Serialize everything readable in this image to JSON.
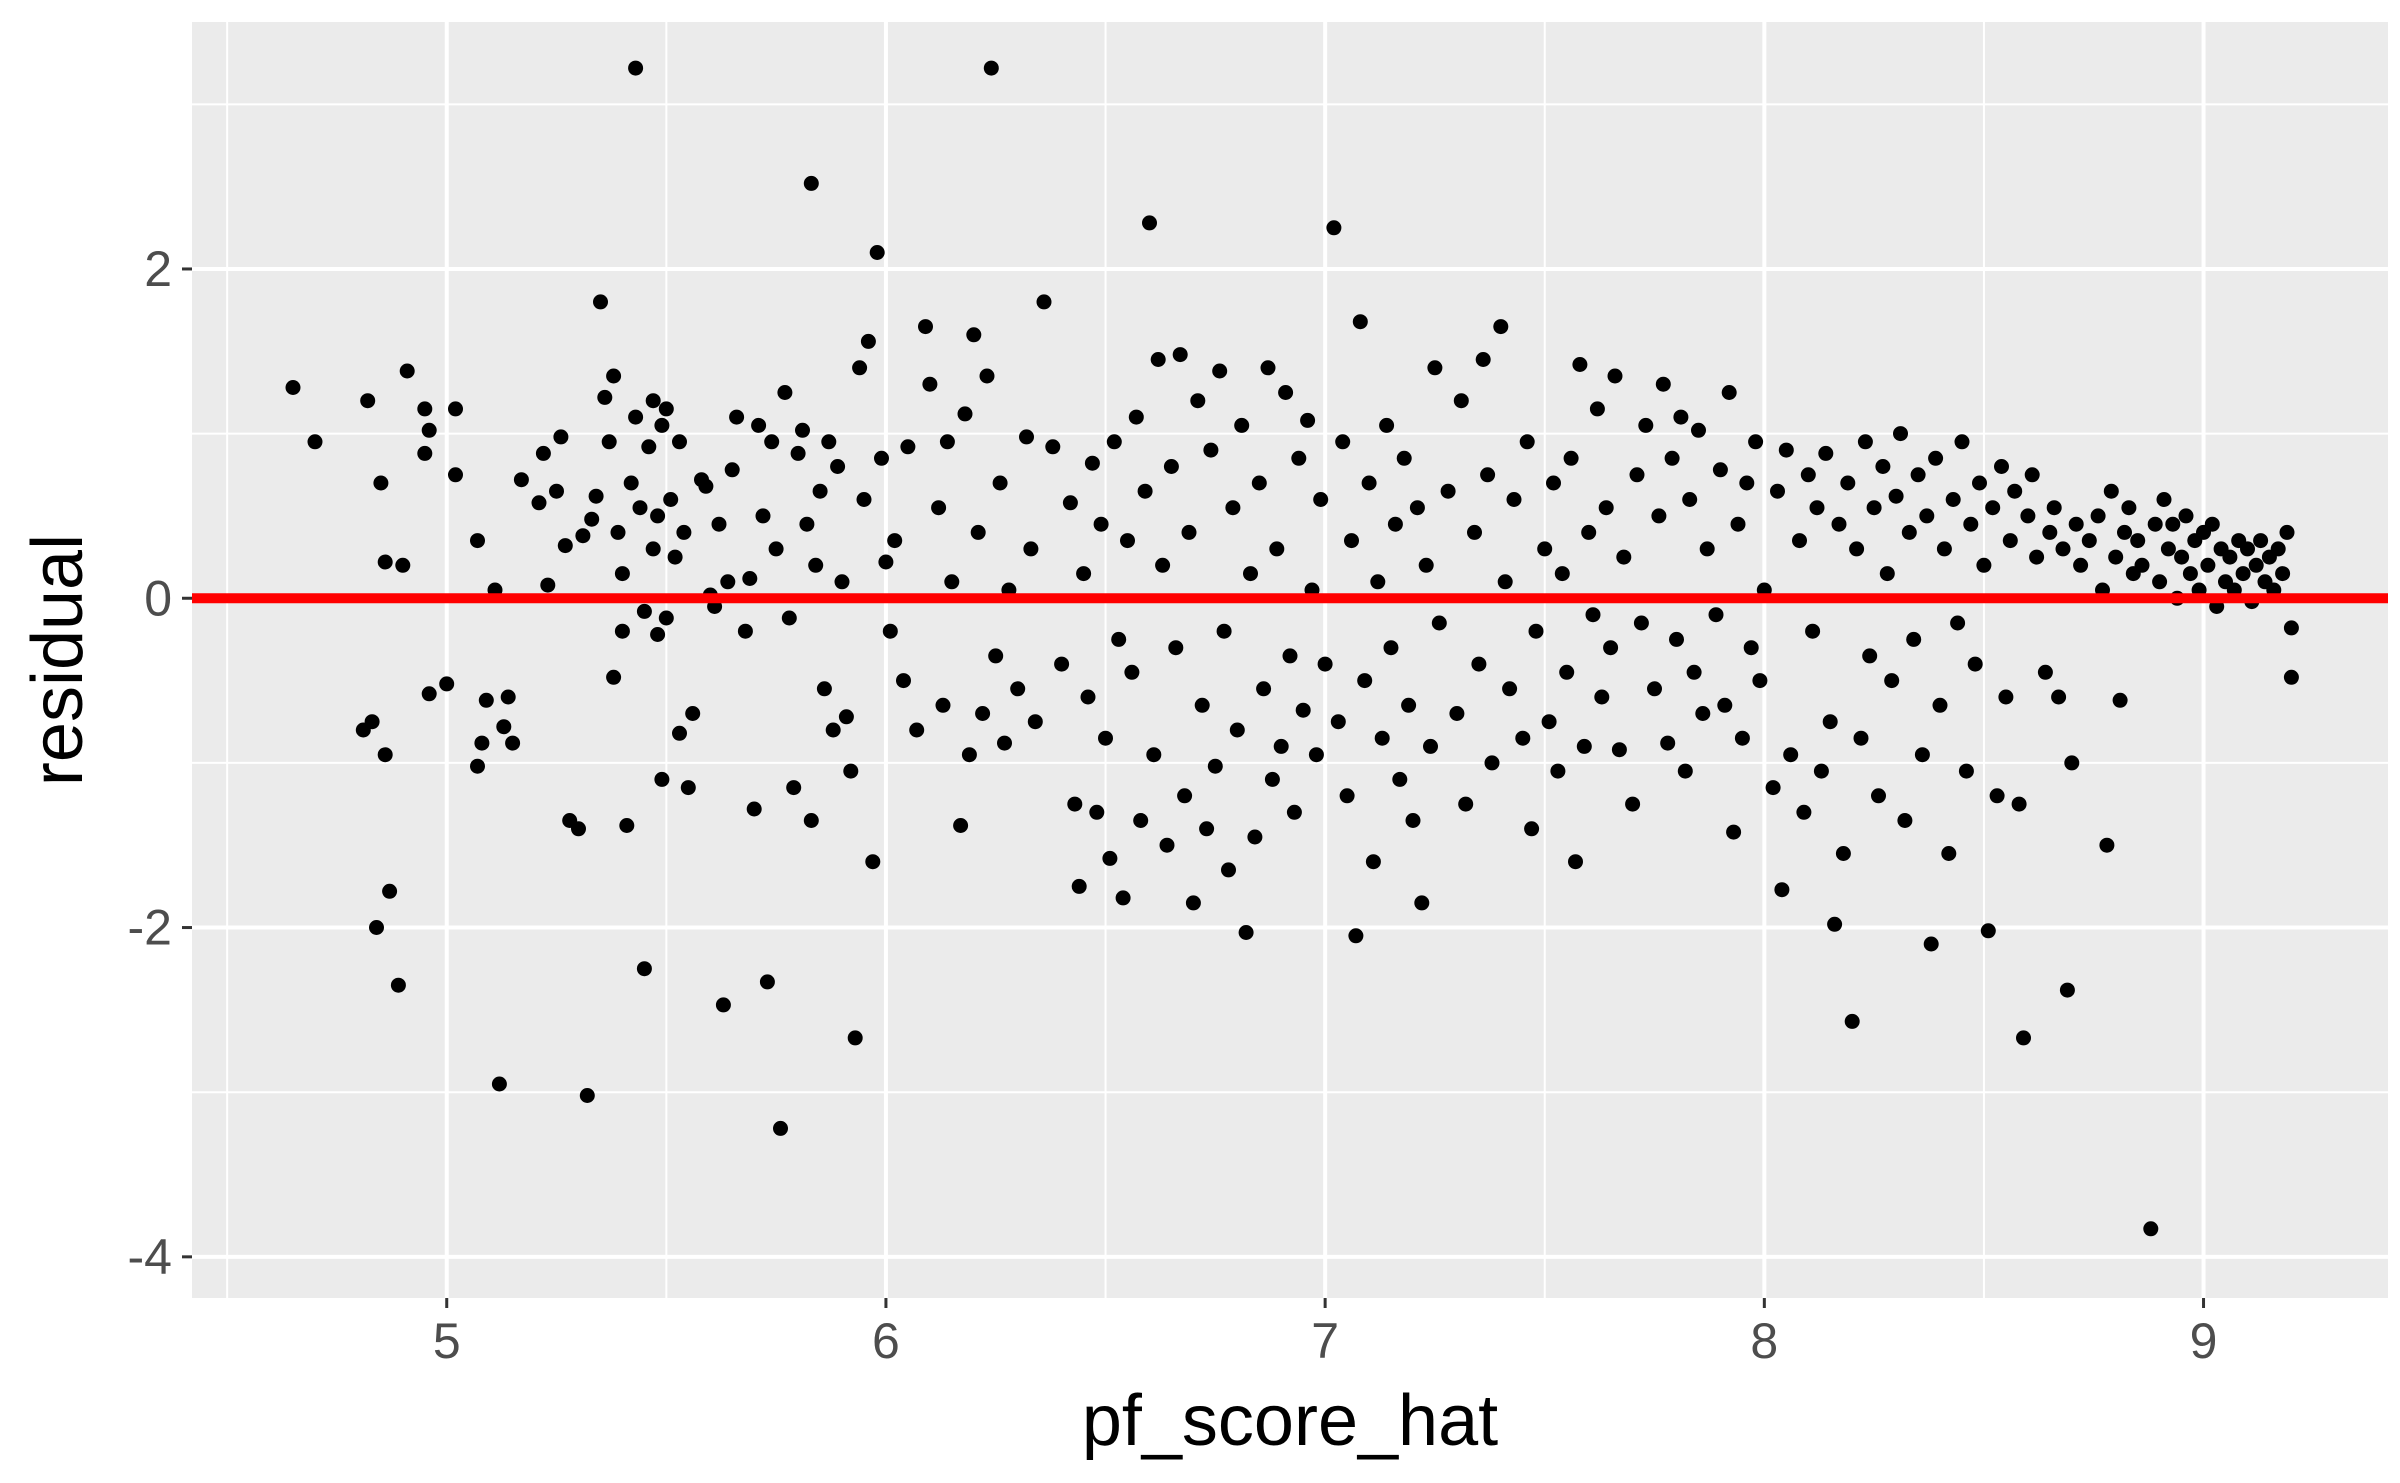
{
  "chart_data": {
    "type": "scatter",
    "xlabel": "pf_score_hat",
    "ylabel": "residual",
    "xlim": [
      4.42,
      9.42
    ],
    "ylim": [
      -4.25,
      3.5
    ],
    "x_ticks": [
      5,
      6,
      7,
      8,
      9
    ],
    "x_tick_labels": [
      "5",
      "6",
      "7",
      "8",
      "9"
    ],
    "y_ticks": [
      -4,
      -2,
      0,
      2
    ],
    "y_tick_labels": [
      "-4",
      "-2",
      "0",
      "2"
    ],
    "grid": true,
    "legend": "none",
    "reference_line": {
      "y": 0,
      "color": "#ff0000"
    },
    "colors": {
      "panel": "#ebebeb",
      "grid": "#ffffff",
      "point": "#000000",
      "reference": "#ff0000"
    },
    "points": [
      [
        4.65,
        1.28
      ],
      [
        4.7,
        0.95
      ],
      [
        4.82,
        1.2
      ],
      [
        4.81,
        -0.8
      ],
      [
        4.83,
        -0.75
      ],
      [
        4.85,
        0.7
      ],
      [
        4.86,
        0.22
      ],
      [
        4.86,
        -0.95
      ],
      [
        4.84,
        -2.0
      ],
      [
        4.87,
        -1.78
      ],
      [
        4.89,
        -2.35
      ],
      [
        4.9,
        0.2
      ],
      [
        4.91,
        1.38
      ],
      [
        4.95,
        1.15
      ],
      [
        4.95,
        0.88
      ],
      [
        4.96,
        1.02
      ],
      [
        4.96,
        -0.58
      ],
      [
        5.0,
        -0.52
      ],
      [
        5.02,
        1.15
      ],
      [
        5.02,
        0.75
      ],
      [
        5.07,
        0.35
      ],
      [
        5.07,
        -1.02
      ],
      [
        5.08,
        -0.88
      ],
      [
        5.09,
        -0.62
      ],
      [
        5.11,
        0.05
      ],
      [
        5.12,
        -2.95
      ],
      [
        5.13,
        -0.78
      ],
      [
        5.14,
        -0.6
      ],
      [
        5.15,
        -0.88
      ],
      [
        5.17,
        0.72
      ],
      [
        5.21,
        0.58
      ],
      [
        5.22,
        0.88
      ],
      [
        5.23,
        0.08
      ],
      [
        5.25,
        0.65
      ],
      [
        5.26,
        0.98
      ],
      [
        5.27,
        0.32
      ],
      [
        5.28,
        -1.35
      ],
      [
        5.3,
        -1.4
      ],
      [
        5.31,
        0.38
      ],
      [
        5.32,
        -3.02
      ],
      [
        5.33,
        0.48
      ],
      [
        5.34,
        0.62
      ],
      [
        5.35,
        1.8
      ],
      [
        5.36,
        1.22
      ],
      [
        5.37,
        0.95
      ],
      [
        5.38,
        1.35
      ],
      [
        5.38,
        -0.48
      ],
      [
        5.39,
        0.4
      ],
      [
        5.4,
        -0.2
      ],
      [
        5.4,
        0.15
      ],
      [
        5.41,
        -1.38
      ],
      [
        5.42,
        0.7
      ],
      [
        5.43,
        1.1
      ],
      [
        5.43,
        3.22
      ],
      [
        5.44,
        0.55
      ],
      [
        5.45,
        -0.08
      ],
      [
        5.45,
        -2.25
      ],
      [
        5.46,
        0.92
      ],
      [
        5.47,
        1.2
      ],
      [
        5.47,
        0.3
      ],
      [
        5.48,
        -0.22
      ],
      [
        5.48,
        0.5
      ],
      [
        5.49,
        1.05
      ],
      [
        5.49,
        -1.1
      ],
      [
        5.5,
        1.15
      ],
      [
        5.5,
        -0.12
      ],
      [
        5.51,
        0.6
      ],
      [
        5.52,
        0.25
      ],
      [
        5.53,
        0.95
      ],
      [
        5.53,
        -0.82
      ],
      [
        5.54,
        0.4
      ],
      [
        5.55,
        -1.15
      ],
      [
        5.56,
        -0.7
      ],
      [
        5.58,
        0.72
      ],
      [
        5.59,
        0.68
      ],
      [
        5.6,
        0.02
      ],
      [
        5.61,
        -0.05
      ],
      [
        5.62,
        0.45
      ],
      [
        5.63,
        -2.47
      ],
      [
        5.64,
        0.1
      ],
      [
        5.65,
        0.78
      ],
      [
        5.66,
        1.1
      ],
      [
        5.68,
        -0.2
      ],
      [
        5.69,
        0.12
      ],
      [
        5.7,
        -1.28
      ],
      [
        5.71,
        1.05
      ],
      [
        5.72,
        0.5
      ],
      [
        5.73,
        -2.33
      ],
      [
        5.74,
        0.95
      ],
      [
        5.75,
        0.3
      ],
      [
        5.76,
        -3.22
      ],
      [
        5.77,
        1.25
      ],
      [
        5.78,
        -0.12
      ],
      [
        5.79,
        -1.15
      ],
      [
        5.8,
        0.88
      ],
      [
        5.81,
        1.02
      ],
      [
        5.82,
        0.45
      ],
      [
        5.83,
        2.52
      ],
      [
        5.83,
        -1.35
      ],
      [
        5.84,
        0.2
      ],
      [
        5.85,
        0.65
      ],
      [
        5.86,
        -0.55
      ],
      [
        5.87,
        0.95
      ],
      [
        5.88,
        -0.8
      ],
      [
        5.89,
        0.8
      ],
      [
        5.9,
        0.1
      ],
      [
        5.91,
        -0.72
      ],
      [
        5.92,
        -1.05
      ],
      [
        5.93,
        -2.67
      ],
      [
        5.94,
        1.4
      ],
      [
        5.95,
        0.6
      ],
      [
        5.96,
        1.56
      ],
      [
        5.97,
        -1.6
      ],
      [
        5.98,
        2.1
      ],
      [
        5.99,
        0.85
      ],
      [
        6.0,
        0.22
      ],
      [
        6.01,
        -0.2
      ],
      [
        6.02,
        0.35
      ],
      [
        6.04,
        -0.5
      ],
      [
        6.05,
        0.92
      ],
      [
        6.07,
        -0.8
      ],
      [
        6.09,
        1.65
      ],
      [
        6.1,
        1.3
      ],
      [
        6.12,
        0.55
      ],
      [
        6.13,
        -0.65
      ],
      [
        6.14,
        0.95
      ],
      [
        6.15,
        0.1
      ],
      [
        6.17,
        -1.38
      ],
      [
        6.18,
        1.12
      ],
      [
        6.19,
        -0.95
      ],
      [
        6.2,
        1.6
      ],
      [
        6.21,
        0.4
      ],
      [
        6.22,
        -0.7
      ],
      [
        6.23,
        1.35
      ],
      [
        6.24,
        3.22
      ],
      [
        6.25,
        -0.35
      ],
      [
        6.26,
        0.7
      ],
      [
        6.27,
        -0.88
      ],
      [
        6.28,
        0.05
      ],
      [
        6.3,
        -0.55
      ],
      [
        6.32,
        0.98
      ],
      [
        6.33,
        0.3
      ],
      [
        6.34,
        -0.75
      ],
      [
        6.36,
        1.8
      ],
      [
        6.38,
        0.92
      ],
      [
        6.4,
        -0.4
      ],
      [
        6.42,
        0.58
      ],
      [
        6.43,
        -1.25
      ],
      [
        6.44,
        -1.75
      ],
      [
        6.45,
        0.15
      ],
      [
        6.46,
        -0.6
      ],
      [
        6.47,
        0.82
      ],
      [
        6.48,
        -1.3
      ],
      [
        6.49,
        0.45
      ],
      [
        6.5,
        -0.85
      ],
      [
        6.51,
        -1.58
      ],
      [
        6.52,
        0.95
      ],
      [
        6.53,
        -0.25
      ],
      [
        6.54,
        -1.82
      ],
      [
        6.55,
        0.35
      ],
      [
        6.56,
        -0.45
      ],
      [
        6.57,
        1.1
      ],
      [
        6.58,
        -1.35
      ],
      [
        6.59,
        0.65
      ],
      [
        6.6,
        2.28
      ],
      [
        6.61,
        -0.95
      ],
      [
        6.62,
        1.45
      ],
      [
        6.63,
        0.2
      ],
      [
        6.64,
        -1.5
      ],
      [
        6.65,
        0.8
      ],
      [
        6.66,
        -0.3
      ],
      [
        6.67,
        1.48
      ],
      [
        6.68,
        -1.2
      ],
      [
        6.69,
        0.4
      ],
      [
        6.7,
        -1.85
      ],
      [
        6.71,
        1.2
      ],
      [
        6.72,
        -0.65
      ],
      [
        6.73,
        -1.4
      ],
      [
        6.74,
        0.9
      ],
      [
        6.75,
        -1.02
      ],
      [
        6.76,
        1.38
      ],
      [
        6.77,
        -0.2
      ],
      [
        6.78,
        -1.65
      ],
      [
        6.79,
        0.55
      ],
      [
        6.8,
        -0.8
      ],
      [
        6.81,
        1.05
      ],
      [
        6.82,
        -2.03
      ],
      [
        6.83,
        0.15
      ],
      [
        6.84,
        -1.45
      ],
      [
        6.85,
        0.7
      ],
      [
        6.86,
        -0.55
      ],
      [
        6.87,
        1.4
      ],
      [
        6.88,
        -1.1
      ],
      [
        6.89,
        0.3
      ],
      [
        6.9,
        -0.9
      ],
      [
        6.91,
        1.25
      ],
      [
        6.92,
        -0.35
      ],
      [
        6.93,
        -1.3
      ],
      [
        6.94,
        0.85
      ],
      [
        6.95,
        -0.68
      ],
      [
        6.96,
        1.08
      ],
      [
        6.97,
        0.05
      ],
      [
        6.98,
        -0.95
      ],
      [
        6.99,
        0.6
      ],
      [
        7.0,
        -0.4
      ],
      [
        7.02,
        2.25
      ],
      [
        7.03,
        -0.75
      ],
      [
        7.04,
        0.95
      ],
      [
        7.05,
        -1.2
      ],
      [
        7.06,
        0.35
      ],
      [
        7.07,
        -2.05
      ],
      [
        7.08,
        1.68
      ],
      [
        7.09,
        -0.5
      ],
      [
        7.1,
        0.7
      ],
      [
        7.11,
        -1.6
      ],
      [
        7.12,
        0.1
      ],
      [
        7.13,
        -0.85
      ],
      [
        7.14,
        1.05
      ],
      [
        7.15,
        -0.3
      ],
      [
        7.16,
        0.45
      ],
      [
        7.17,
        -1.1
      ],
      [
        7.18,
        0.85
      ],
      [
        7.19,
        -0.65
      ],
      [
        7.2,
        -1.35
      ],
      [
        7.21,
        0.55
      ],
      [
        7.22,
        -1.85
      ],
      [
        7.23,
        0.2
      ],
      [
        7.24,
        -0.9
      ],
      [
        7.25,
        1.4
      ],
      [
        7.26,
        -0.15
      ],
      [
        7.28,
        0.65
      ],
      [
        7.3,
        -0.7
      ],
      [
        7.31,
        1.2
      ],
      [
        7.32,
        -1.25
      ],
      [
        7.34,
        0.4
      ],
      [
        7.35,
        -0.4
      ],
      [
        7.36,
        1.45
      ],
      [
        7.37,
        0.75
      ],
      [
        7.38,
        -1.0
      ],
      [
        7.4,
        1.65
      ],
      [
        7.41,
        0.1
      ],
      [
        7.42,
        -0.55
      ],
      [
        7.43,
        0.6
      ],
      [
        7.45,
        -0.85
      ],
      [
        7.46,
        0.95
      ],
      [
        7.47,
        -1.4
      ],
      [
        7.48,
        -0.2
      ],
      [
        7.5,
        0.3
      ],
      [
        7.51,
        -0.75
      ],
      [
        7.52,
        0.7
      ],
      [
        7.53,
        -1.05
      ],
      [
        7.54,
        0.15
      ],
      [
        7.55,
        -0.45
      ],
      [
        7.56,
        0.85
      ],
      [
        7.57,
        -1.6
      ],
      [
        7.58,
        1.42
      ],
      [
        7.59,
        -0.9
      ],
      [
        7.6,
        0.4
      ],
      [
        7.61,
        -0.1
      ],
      [
        7.62,
        1.15
      ],
      [
        7.63,
        -0.6
      ],
      [
        7.64,
        0.55
      ],
      [
        7.65,
        -0.3
      ],
      [
        7.66,
        1.35
      ],
      [
        7.67,
        -0.92
      ],
      [
        7.68,
        0.25
      ],
      [
        7.7,
        -1.25
      ],
      [
        7.71,
        0.75
      ],
      [
        7.72,
        -0.15
      ],
      [
        7.73,
        1.05
      ],
      [
        7.75,
        -0.55
      ],
      [
        7.76,
        0.5
      ],
      [
        7.77,
        1.3
      ],
      [
        7.78,
        -0.88
      ],
      [
        7.79,
        0.85
      ],
      [
        7.8,
        -0.25
      ],
      [
        7.81,
        1.1
      ],
      [
        7.82,
        -1.05
      ],
      [
        7.83,
        0.6
      ],
      [
        7.84,
        -0.45
      ],
      [
        7.85,
        1.02
      ],
      [
        7.86,
        -0.7
      ],
      [
        7.87,
        0.3
      ],
      [
        7.89,
        -0.1
      ],
      [
        7.9,
        0.78
      ],
      [
        7.91,
        -0.65
      ],
      [
        7.92,
        1.25
      ],
      [
        7.93,
        -1.42
      ],
      [
        7.94,
        0.45
      ],
      [
        7.95,
        -0.85
      ],
      [
        7.96,
        0.7
      ],
      [
        7.97,
        -0.3
      ],
      [
        7.98,
        0.95
      ],
      [
        7.99,
        -0.5
      ],
      [
        8.0,
        0.05
      ],
      [
        8.02,
        -1.15
      ],
      [
        8.03,
        0.65
      ],
      [
        8.04,
        -1.77
      ],
      [
        8.05,
        0.9
      ],
      [
        8.06,
        -0.95
      ],
      [
        8.08,
        0.35
      ],
      [
        8.09,
        -1.3
      ],
      [
        8.1,
        0.75
      ],
      [
        8.11,
        -0.2
      ],
      [
        8.12,
        0.55
      ],
      [
        8.13,
        -1.05
      ],
      [
        8.14,
        0.88
      ],
      [
        8.15,
        -0.75
      ],
      [
        8.16,
        -1.98
      ],
      [
        8.17,
        0.45
      ],
      [
        8.18,
        -1.55
      ],
      [
        8.19,
        0.7
      ],
      [
        8.2,
        -2.57
      ],
      [
        8.21,
        0.3
      ],
      [
        8.22,
        -0.85
      ],
      [
        8.23,
        0.95
      ],
      [
        8.24,
        -0.35
      ],
      [
        8.25,
        0.55
      ],
      [
        8.26,
        -1.2
      ],
      [
        8.27,
        0.8
      ],
      [
        8.28,
        0.15
      ],
      [
        8.29,
        -0.5
      ],
      [
        8.3,
        0.62
      ],
      [
        8.31,
        1.0
      ],
      [
        8.32,
        -1.35
      ],
      [
        8.33,
        0.4
      ],
      [
        8.34,
        -0.25
      ],
      [
        8.35,
        0.75
      ],
      [
        8.36,
        -0.95
      ],
      [
        8.37,
        0.5
      ],
      [
        8.38,
        -2.1
      ],
      [
        8.39,
        0.85
      ],
      [
        8.4,
        -0.65
      ],
      [
        8.41,
        0.3
      ],
      [
        8.42,
        -1.55
      ],
      [
        8.43,
        0.6
      ],
      [
        8.44,
        -0.15
      ],
      [
        8.45,
        0.95
      ],
      [
        8.46,
        -1.05
      ],
      [
        8.47,
        0.45
      ],
      [
        8.48,
        -0.4
      ],
      [
        8.49,
        0.7
      ],
      [
        8.5,
        0.2
      ],
      [
        8.51,
        -2.02
      ],
      [
        8.52,
        0.55
      ],
      [
        8.53,
        -1.2
      ],
      [
        8.54,
        0.8
      ],
      [
        8.55,
        -0.6
      ],
      [
        8.56,
        0.35
      ],
      [
        8.57,
        0.65
      ],
      [
        8.58,
        -1.25
      ],
      [
        8.59,
        -2.67
      ],
      [
        8.6,
        0.5
      ],
      [
        8.61,
        0.75
      ],
      [
        8.62,
        0.25
      ],
      [
        8.64,
        -0.45
      ],
      [
        8.65,
        0.4
      ],
      [
        8.66,
        0.55
      ],
      [
        8.67,
        -0.6
      ],
      [
        8.68,
        0.3
      ],
      [
        8.69,
        -2.38
      ],
      [
        8.7,
        -1.0
      ],
      [
        8.71,
        0.45
      ],
      [
        8.72,
        0.2
      ],
      [
        8.74,
        0.35
      ],
      [
        8.76,
        0.5
      ],
      [
        8.77,
        0.05
      ],
      [
        8.78,
        -1.5
      ],
      [
        8.79,
        0.65
      ],
      [
        8.8,
        0.25
      ],
      [
        8.81,
        -0.62
      ],
      [
        8.82,
        0.4
      ],
      [
        8.83,
        0.55
      ],
      [
        8.84,
        0.15
      ],
      [
        8.85,
        0.35
      ],
      [
        8.86,
        0.2
      ],
      [
        8.88,
        -3.83
      ],
      [
        8.89,
        0.45
      ],
      [
        8.9,
        0.1
      ],
      [
        8.91,
        0.6
      ],
      [
        8.92,
        0.3
      ],
      [
        8.93,
        0.45
      ],
      [
        8.94,
        0.0
      ],
      [
        8.95,
        0.25
      ],
      [
        8.96,
        0.5
      ],
      [
        8.97,
        0.15
      ],
      [
        8.98,
        0.35
      ],
      [
        8.99,
        0.05
      ],
      [
        9.0,
        0.4
      ],
      [
        9.01,
        0.2
      ],
      [
        9.02,
        0.45
      ],
      [
        9.03,
        -0.05
      ],
      [
        9.04,
        0.3
      ],
      [
        9.05,
        0.1
      ],
      [
        9.06,
        0.25
      ],
      [
        9.07,
        0.05
      ],
      [
        9.08,
        0.35
      ],
      [
        9.09,
        0.15
      ],
      [
        9.1,
        0.3
      ],
      [
        9.11,
        -0.02
      ],
      [
        9.12,
        0.2
      ],
      [
        9.13,
        0.35
      ],
      [
        9.14,
        0.1
      ],
      [
        9.15,
        0.25
      ],
      [
        9.16,
        0.05
      ],
      [
        9.17,
        0.3
      ],
      [
        9.18,
        0.15
      ],
      [
        9.19,
        0.4
      ],
      [
        9.2,
        -0.18
      ],
      [
        9.2,
        -0.48
      ]
    ]
  }
}
